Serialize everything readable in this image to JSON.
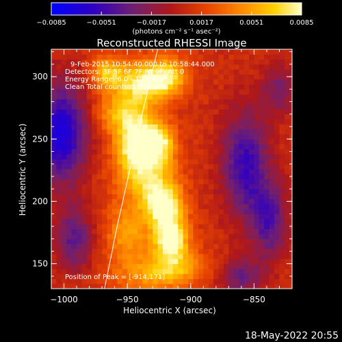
{
  "chart_data": {
    "type": "heatmap",
    "title": "Reconstructed RHESSI Image",
    "xlabel": "Heliocentric X (arcsec)",
    "ylabel": "Heliocentric Y (arcsec)",
    "xlim": [
      -1010,
      -820
    ],
    "ylim": [
      130,
      322
    ],
    "x_ticks": [
      {
        "value": -1000,
        "label": "−1000"
      },
      {
        "value": -950,
        "label": "−950"
      },
      {
        "value": -900,
        "label": "−900"
      },
      {
        "value": -850,
        "label": "−850"
      }
    ],
    "y_ticks": [
      {
        "value": 150,
        "label": "150"
      },
      {
        "value": 200,
        "label": "200"
      },
      {
        "value": 250,
        "label": "250"
      },
      {
        "value": 300,
        "label": "300"
      }
    ],
    "colorbar": {
      "colormap": "red-temperature",
      "range": [
        -0.0085,
        0.0085
      ],
      "ticks": [
        {
          "value": -0.0085,
          "label": "−0.0085"
        },
        {
          "value": -0.0051,
          "label": "−0.0051"
        },
        {
          "value": -0.0017,
          "label": "−0.0017"
        },
        {
          "value": 0.0017,
          "label": "0.0017"
        },
        {
          "value": 0.0051,
          "label": "0.0051"
        },
        {
          "value": 0.0085,
          "label": "0.0085"
        }
      ],
      "unit_label": "(photons cm⁻² s⁻¹ asec⁻²)"
    },
    "annotations": [
      "9-Feb-2015 10:54:40.000 to 10:58:44.000",
      "Detectors: 3F 5F 6F 7F 8F 9F, Att 0",
      "Energy Range: 6.0 - 12.0 keV",
      "Clean     Total counts: 1.50E+04"
    ],
    "peak_label": "Position of Peak = [-914,171]",
    "peak": {
      "x": -914,
      "y": 171
    },
    "limb": [
      {
        "x": -968,
        "y": 130
      },
      {
        "x": -958,
        "y": 180
      },
      {
        "x": -947,
        "y": 230
      },
      {
        "x": -936,
        "y": 280
      },
      {
        "x": -926,
        "y": 322
      }
    ],
    "grid_cell_arcsec": 4,
    "sources": [
      {
        "x": -916,
        "y": 172,
        "sx": 10,
        "sy": 12,
        "amp": 1.0
      },
      {
        "x": -922,
        "y": 198,
        "sx": 11,
        "sy": 11,
        "amp": 0.95
      },
      {
        "x": -944,
        "y": 247,
        "sx": 11,
        "sy": 13,
        "amp": 0.9
      },
      {
        "x": -925,
        "y": 248,
        "sx": 9,
        "sy": 11,
        "amp": 0.8
      },
      {
        "x": -935,
        "y": 222,
        "sx": 16,
        "sy": 14,
        "amp": 0.7
      },
      {
        "x": -940,
        "y": 295,
        "sx": 14,
        "sy": 12,
        "amp": 0.8
      },
      {
        "x": -918,
        "y": 300,
        "sx": 11,
        "sy": 11,
        "amp": 0.7
      },
      {
        "x": -966,
        "y": 303,
        "sx": 9,
        "sy": 10,
        "amp": 0.6
      },
      {
        "x": -952,
        "y": 270,
        "sx": 16,
        "sy": 10,
        "amp": 0.6
      },
      {
        "x": -950,
        "y": 175,
        "sx": 12,
        "sy": 18,
        "amp": 0.5
      },
      {
        "x": -912,
        "y": 150,
        "sx": 16,
        "sy": 10,
        "amp": 0.45
      },
      {
        "x": -930,
        "y": 140,
        "sx": 22,
        "sy": 10,
        "amp": 0.4
      }
    ],
    "negative_regions": [
      {
        "x": -1002,
        "y": 255,
        "sx": 14,
        "sy": 28,
        "amp": 0.9
      },
      {
        "x": -992,
        "y": 170,
        "sx": 10,
        "sy": 18,
        "amp": 0.55
      },
      {
        "x": -857,
        "y": 230,
        "sx": 13,
        "sy": 30,
        "amp": 0.7
      },
      {
        "x": -838,
        "y": 185,
        "sx": 10,
        "sy": 22,
        "amp": 0.6
      },
      {
        "x": -830,
        "y": 290,
        "sx": 10,
        "sy": 14,
        "amp": 0.4
      },
      {
        "x": -860,
        "y": 140,
        "sx": 12,
        "sy": 10,
        "amp": 0.45
      }
    ],
    "background_level": 0.1
  },
  "footer_date": "18-May-2022 20:55"
}
